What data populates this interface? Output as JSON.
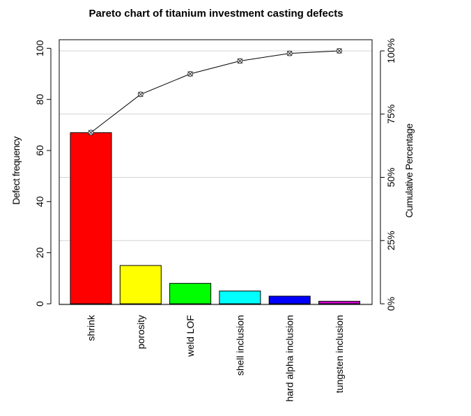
{
  "chart_data": {
    "type": "bar",
    "title": "Pareto chart of titanium investment casting defects",
    "ylabel": "Defect frequency",
    "y2label": "Cumulative Percentage",
    "categories": [
      "shrink",
      "porosity",
      "weld LOF",
      "shell inclusion",
      "hard alpha inclusion",
      "tungsten inclusion"
    ],
    "values": [
      67,
      15,
      8,
      5,
      3,
      1
    ],
    "colors": [
      "#ff0000",
      "#ffff00",
      "#00ff00",
      "#00ffff",
      "#0000ff",
      "#cc00cc"
    ],
    "cumulative_percent": [
      67.7,
      82.8,
      90.9,
      96.0,
      99.0,
      100.0
    ],
    "ylim": [
      0,
      99
    ],
    "y_ticks": [
      "0",
      "20",
      "40",
      "60",
      "80",
      "100"
    ],
    "y2_ticks": [
      "0%",
      "25%",
      "50%",
      "75%",
      "100%"
    ],
    "grid": "horizontal at cumulative percentage ticks",
    "line_color": "#000000",
    "marker": "circle with cross"
  }
}
